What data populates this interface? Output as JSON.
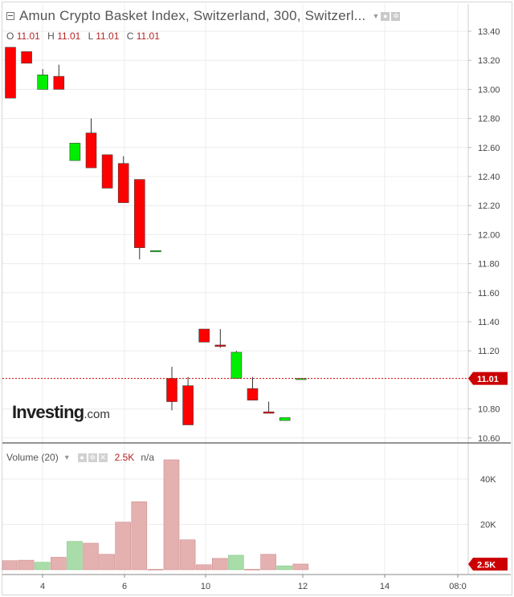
{
  "header": {
    "title": "Amun Crypto Basket Index, Switzerland, 300, Switzerl...",
    "ohlc": {
      "open_label": "O",
      "open": "11.01",
      "high_label": "H",
      "high": "11.01",
      "low_label": "L",
      "low": "11.01",
      "close_label": "C",
      "close": "11.01"
    }
  },
  "volume_header": {
    "label": "Volume (20)",
    "value": "2.5K",
    "na": "n/a"
  },
  "logo": {
    "main": "Investing",
    "suffix": ".com"
  },
  "colors": {
    "up": "#00ee00",
    "down": "#ff0000",
    "volume_up": "#a8dca8",
    "volume_down": "#e4b0b0",
    "price_line": "#cc0000",
    "grid": "#ececec"
  },
  "chart_data": [
    {
      "type": "candlestick",
      "title": "Amun Crypto Basket Index, Switzerland, 300",
      "x_tick_labels": [
        "4",
        "6",
        "10",
        "12",
        "14",
        "08:0"
      ],
      "y_ticks": [
        "13.40",
        "13.20",
        "13.00",
        "12.80",
        "12.60",
        "12.40",
        "12.20",
        "12.00",
        "11.80",
        "11.60",
        "11.40",
        "11.20",
        "11.01",
        "10.80",
        "10.60"
      ],
      "ylim": [
        10.55,
        13.52
      ],
      "last_price": 11.01,
      "last_price_label": "11.01",
      "grid": true,
      "candles": [
        {
          "o": 13.29,
          "h": 13.29,
          "l": 12.94,
          "c": 12.94
        },
        {
          "o": 13.26,
          "h": 13.26,
          "l": 13.18,
          "c": 13.18
        },
        {
          "o": 13.0,
          "h": 13.14,
          "l": 13.0,
          "c": 13.1
        },
        {
          "o": 13.09,
          "h": 13.17,
          "l": 13.0,
          "c": 13.0
        },
        {
          "o": 12.51,
          "h": 12.63,
          "l": 12.51,
          "c": 12.63
        },
        {
          "o": 12.7,
          "h": 12.8,
          "l": 12.46,
          "c": 12.46
        },
        {
          "o": 12.55,
          "h": 12.55,
          "l": 12.32,
          "c": 12.32
        },
        {
          "o": 12.49,
          "h": 12.54,
          "l": 12.22,
          "c": 12.22
        },
        {
          "o": 12.38,
          "h": 12.38,
          "l": 11.83,
          "c": 11.91
        },
        {
          "o": 11.89,
          "h": 11.89,
          "l": 11.89,
          "c": 11.89
        },
        {
          "o": 11.01,
          "h": 11.09,
          "l": 10.79,
          "c": 10.85
        },
        {
          "o": 10.96,
          "h": 11.02,
          "l": 10.69,
          "c": 10.69
        },
        {
          "o": 11.35,
          "h": 11.35,
          "l": 11.26,
          "c": 11.26
        },
        {
          "o": 11.24,
          "h": 11.35,
          "l": 11.22,
          "c": 11.23
        },
        {
          "o": 11.01,
          "h": 11.2,
          "l": 11.01,
          "c": 11.19
        },
        {
          "o": 10.94,
          "h": 11.02,
          "l": 10.86,
          "c": 10.86
        },
        {
          "o": 10.78,
          "h": 10.85,
          "l": 10.77,
          "c": 10.77
        },
        {
          "o": 10.72,
          "h": 10.74,
          "l": 10.72,
          "c": 10.74
        },
        {
          "o": 11.01,
          "h": 11.01,
          "l": 11.01,
          "c": 11.01
        }
      ]
    },
    {
      "type": "bar",
      "title": "Volume (20)",
      "y_ticks": [
        "40K",
        "20K"
      ],
      "ylim": [
        0,
        54000
      ],
      "last_value_label": "2.5K",
      "values": [
        {
          "v": 4000,
          "up": false
        },
        {
          "v": 4200,
          "up": false
        },
        {
          "v": 3300,
          "up": true
        },
        {
          "v": 5500,
          "up": false
        },
        {
          "v": 12500,
          "up": true
        },
        {
          "v": 11700,
          "up": false
        },
        {
          "v": 6800,
          "up": false
        },
        {
          "v": 21000,
          "up": false
        },
        {
          "v": 30000,
          "up": false
        },
        {
          "v": 200,
          "up": false
        },
        {
          "v": 48500,
          "up": false
        },
        {
          "v": 13200,
          "up": false
        },
        {
          "v": 2200,
          "up": false
        },
        {
          "v": 5000,
          "up": false
        },
        {
          "v": 6400,
          "up": true
        },
        {
          "v": 200,
          "up": false
        },
        {
          "v": 6800,
          "up": false
        },
        {
          "v": 1700,
          "up": true
        },
        {
          "v": 2500,
          "up": false
        }
      ]
    }
  ]
}
